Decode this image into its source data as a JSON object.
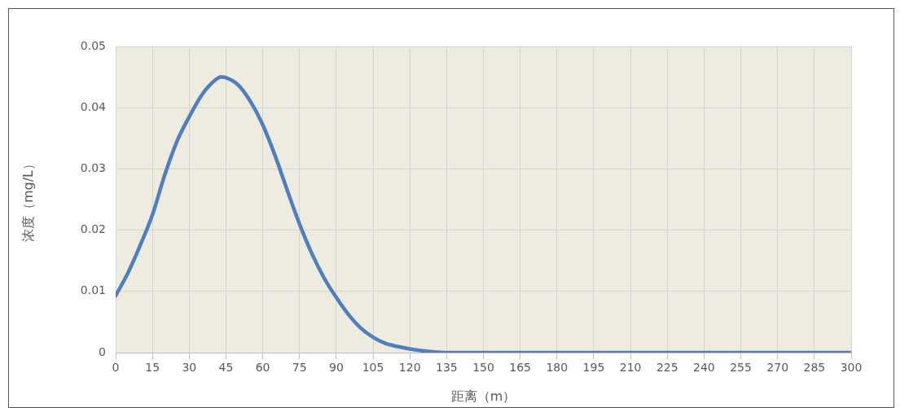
{
  "chart_data": {
    "type": "line",
    "xlabel": "距离（m）",
    "ylabel": "浓度（mg/L）",
    "x": [
      0,
      5,
      10,
      15,
      20,
      25,
      30,
      35,
      40,
      43,
      45,
      50,
      55,
      60,
      65,
      70,
      75,
      80,
      85,
      90,
      95,
      100,
      105,
      110,
      115,
      120,
      125,
      130,
      135,
      150,
      200,
      250,
      300
    ],
    "series": [
      {
        "color": "#4f7fbd",
        "values": [
          0.0093,
          0.013,
          0.0175,
          0.0225,
          0.029,
          0.0345,
          0.0385,
          0.042,
          0.0443,
          0.045,
          0.0449,
          0.0437,
          0.041,
          0.0372,
          0.0322,
          0.0265,
          0.021,
          0.0162,
          0.0122,
          0.009,
          0.0062,
          0.004,
          0.0025,
          0.0015,
          0.001,
          0.0006,
          0.0003,
          0.0001,
          0,
          0,
          0,
          0,
          0
        ]
      }
    ],
    "xlim": [
      0,
      300
    ],
    "xticks": [
      0,
      15,
      30,
      45,
      60,
      75,
      90,
      105,
      120,
      135,
      150,
      165,
      180,
      195,
      210,
      225,
      240,
      255,
      270,
      285,
      300
    ],
    "ylim": [
      0,
      0.05
    ],
    "yticks": [
      0,
      0.01,
      0.02,
      0.03,
      0.04,
      0.05
    ],
    "grid": true,
    "legend": false,
    "marker": "none",
    "line_style": "solid"
  }
}
